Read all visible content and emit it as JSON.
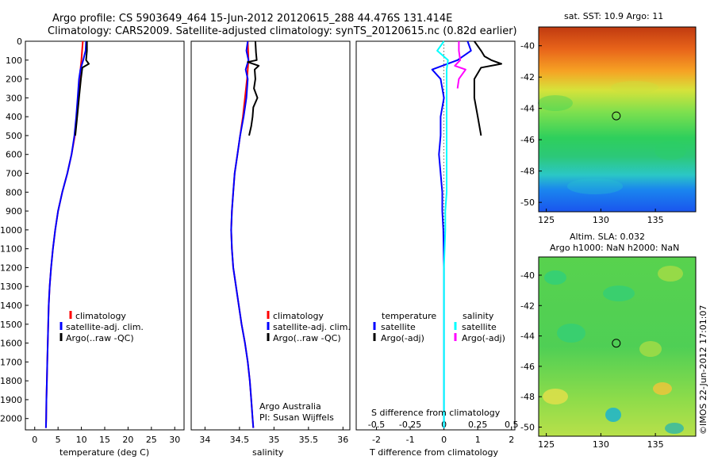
{
  "title": {
    "line1": "Argo profile: CS 5903649_464 15-Jun-2012 20120615_288 44.476S 131.414E",
    "line2": "Climatology: CARS2009. Satellite-adjusted climatology: synTS_20120615.nc (0.82d earlier)"
  },
  "colors": {
    "climatology": "#ff0000",
    "satellite": "#0000ff",
    "argo": "#000000",
    "sal_satellite": "#00ffff",
    "sal_argo": "#ff00ff"
  },
  "chart_data": [
    {
      "id": "temperature",
      "type": "line",
      "xlabel": "temperature (deg C)",
      "ylabel": "",
      "xlim": [
        -2,
        32
      ],
      "ylim": [
        2060,
        0
      ],
      "xticks": [
        0,
        5,
        10,
        15,
        20,
        25,
        30
      ],
      "yticks": [
        0,
        100,
        200,
        300,
        400,
        500,
        600,
        700,
        800,
        900,
        1000,
        1100,
        1200,
        1300,
        1400,
        1500,
        1600,
        1700,
        1800,
        1900,
        2000
      ],
      "legend": [
        "climatology",
        "satellite-adj. clim.",
        "Argo(..raw -QC)"
      ],
      "legend_position": "lower-center",
      "series": [
        {
          "name": "climatology",
          "color": "#ff0000",
          "depth": [
            0,
            100,
            200,
            300,
            400,
            500,
            600,
            700,
            800,
            900,
            1000,
            1100,
            1200,
            1300,
            1400,
            1500,
            1600,
            1700,
            1800,
            1900,
            2000,
            2050
          ],
          "values": [
            10.3,
            10.0,
            9.6,
            9.3,
            9.0,
            8.6,
            7.9,
            7.0,
            5.9,
            5.0,
            4.4,
            3.9,
            3.5,
            3.2,
            3.0,
            2.9,
            2.8,
            2.7,
            2.6,
            2.5,
            2.45,
            2.4
          ]
        },
        {
          "name": "satellite-adj. clim.",
          "color": "#0000ff",
          "depth": [
            0,
            50,
            100,
            150,
            200,
            300,
            400,
            500,
            600,
            700,
            800,
            900,
            1000,
            1100,
            1200,
            1300,
            1400,
            1500,
            1600,
            1700,
            1800,
            1900,
            2000,
            2050
          ],
          "values": [
            11.0,
            10.9,
            10.4,
            9.8,
            9.5,
            9.2,
            8.9,
            8.5,
            7.9,
            7.0,
            5.9,
            5.0,
            4.4,
            3.9,
            3.5,
            3.2,
            3.0,
            2.9,
            2.8,
            2.7,
            2.6,
            2.5,
            2.45,
            2.4
          ]
        },
        {
          "name": "Argo(..raw -QC)",
          "color": "#000000",
          "depth": [
            0,
            50,
            100,
            120,
            140,
            200,
            300,
            400,
            500
          ],
          "values": [
            11.2,
            11.2,
            11.0,
            11.6,
            10.2,
            9.9,
            9.5,
            9.1,
            8.7
          ]
        }
      ]
    },
    {
      "id": "salinity",
      "type": "line",
      "xlabel": "salinity",
      "ylabel": "",
      "xlim": [
        33.8,
        36.1
      ],
      "ylim": [
        2060,
        0
      ],
      "xticks": [
        34,
        34.5,
        35,
        35.5,
        36
      ],
      "legend": [
        "climatology",
        "satellite-adj. clim.",
        "Argo(..raw -QC)"
      ],
      "legend_position": "lower-center",
      "annotations": [
        "Argo Australia",
        "PI: Susan Wijffels"
      ],
      "series": [
        {
          "name": "climatology",
          "color": "#ff0000",
          "depth": [
            0,
            100,
            200,
            300,
            400,
            500,
            600,
            700,
            800,
            900,
            1000,
            1100,
            1200,
            1300,
            1400,
            1500,
            1600,
            1700,
            1800,
            1900,
            2000,
            2050
          ],
          "values": [
            34.62,
            34.63,
            34.61,
            34.58,
            34.55,
            34.51,
            34.47,
            34.43,
            34.41,
            34.39,
            34.38,
            34.39,
            34.41,
            34.45,
            34.49,
            34.53,
            34.58,
            34.62,
            34.65,
            34.67,
            34.69,
            34.7
          ]
        },
        {
          "name": "satellite-adj. clim.",
          "color": "#0000ff",
          "depth": [
            0,
            50,
            100,
            150,
            200,
            300,
            400,
            500,
            600,
            700,
            800,
            900,
            1000,
            1100,
            1200,
            1300,
            1400,
            1500,
            1600,
            1700,
            1800,
            1900,
            2000,
            2050
          ],
          "values": [
            34.62,
            34.6,
            34.63,
            34.59,
            34.62,
            34.6,
            34.56,
            34.51,
            34.47,
            34.43,
            34.41,
            34.39,
            34.38,
            34.39,
            34.41,
            34.45,
            34.49,
            34.53,
            34.58,
            34.62,
            34.65,
            34.67,
            34.69,
            34.7
          ]
        },
        {
          "name": "Argo(..raw -QC)",
          "color": "#000000",
          "depth": [
            0,
            60,
            100,
            110,
            130,
            150,
            200,
            250,
            300,
            350,
            400,
            450,
            500
          ],
          "values": [
            34.73,
            34.74,
            34.75,
            34.62,
            34.78,
            34.72,
            34.73,
            34.71,
            34.76,
            34.7,
            34.69,
            34.67,
            34.64
          ]
        }
      ]
    },
    {
      "id": "difference",
      "type": "line",
      "xlabel": "T difference from climatology",
      "xlabel_top": "S difference from climatology",
      "ylabel": "",
      "xlim": [
        -2.6,
        2.1
      ],
      "ylim": [
        2060,
        0
      ],
      "xticks": [
        -2,
        -1,
        0,
        1,
        2
      ],
      "xticks_s": [
        -0.5,
        -0.25,
        0,
        0.25,
        0.5
      ],
      "legend_titles": [
        "temperature",
        "salinity"
      ],
      "legend": [
        "satellite",
        "Argo(-adj)",
        "satellite",
        "Argo(-adj)"
      ],
      "legend_position": "lower-center",
      "series": [
        {
          "name": "temperature satellite",
          "color": "#0000ff",
          "depth": [
            0,
            50,
            100,
            150,
            200,
            250,
            300,
            400,
            500,
            600,
            700,
            800,
            900,
            1000,
            1200,
            1400,
            1600,
            1800,
            2000,
            2050
          ],
          "values": [
            0.7,
            0.8,
            0.4,
            -0.35,
            -0.1,
            -0.05,
            0.0,
            -0.1,
            -0.1,
            -0.15,
            -0.1,
            -0.05,
            -0.05,
            -0.02,
            0.0,
            0.0,
            0.0,
            0.0,
            0.0,
            0.0
          ]
        },
        {
          "name": "temperature Argo(-adj)",
          "color": "#000000",
          "depth": [
            0,
            50,
            80,
            100,
            120,
            140,
            200,
            300,
            400,
            500
          ],
          "values": [
            0.9,
            1.1,
            1.2,
            1.4,
            1.7,
            1.1,
            0.9,
            0.9,
            1.0,
            1.1
          ]
        },
        {
          "name": "salinity satellite",
          "color": "#00ffff",
          "depth": [
            0,
            50,
            100,
            150,
            200,
            300,
            400,
            500,
            600,
            700,
            800,
            900,
            1000,
            1200,
            1400,
            1600,
            1800,
            2000,
            2050
          ],
          "values": [
            0.0,
            -0.05,
            0.03,
            0.02,
            0.02,
            0.02,
            0.02,
            0.02,
            0.02,
            0.02,
            0.02,
            0.01,
            0.01,
            0.0,
            0.0,
            0.0,
            0.0,
            0.0,
            0.0
          ]
        },
        {
          "name": "salinity Argo(-adj)",
          "color": "#ff00ff",
          "depth": [
            0,
            50,
            100,
            130,
            150,
            200,
            250
          ],
          "values": [
            0.11,
            0.11,
            0.12,
            0.08,
            0.16,
            0.11,
            0.1
          ]
        }
      ]
    },
    {
      "id": "sst_map",
      "type": "heatmap",
      "title": "sat. SST: 10.9 Argo: 11",
      "xticks": [
        125,
        130,
        135
      ],
      "yticks": [
        -40,
        -42,
        -44,
        -46,
        -48,
        -50
      ],
      "xlim": [
        124.3,
        138.7
      ],
      "ylim": [
        -50.6,
        -38.8
      ],
      "marker": {
        "lon": 131.414,
        "lat": -44.476
      }
    },
    {
      "id": "sla_map",
      "type": "heatmap",
      "title": "Altim. SLA: 0.032",
      "subtitle": "Argo h1000: NaN h2000: NaN",
      "xticks": [
        125,
        130,
        135
      ],
      "yticks": [
        -40,
        -42,
        -44,
        -46,
        -48,
        -50
      ],
      "xlim": [
        124.3,
        138.7
      ],
      "ylim": [
        -50.6,
        -38.8
      ],
      "marker": {
        "lon": 131.414,
        "lat": -44.476
      }
    }
  ],
  "stamp": "©IMOS 22-Jun-2012 17:01:07"
}
